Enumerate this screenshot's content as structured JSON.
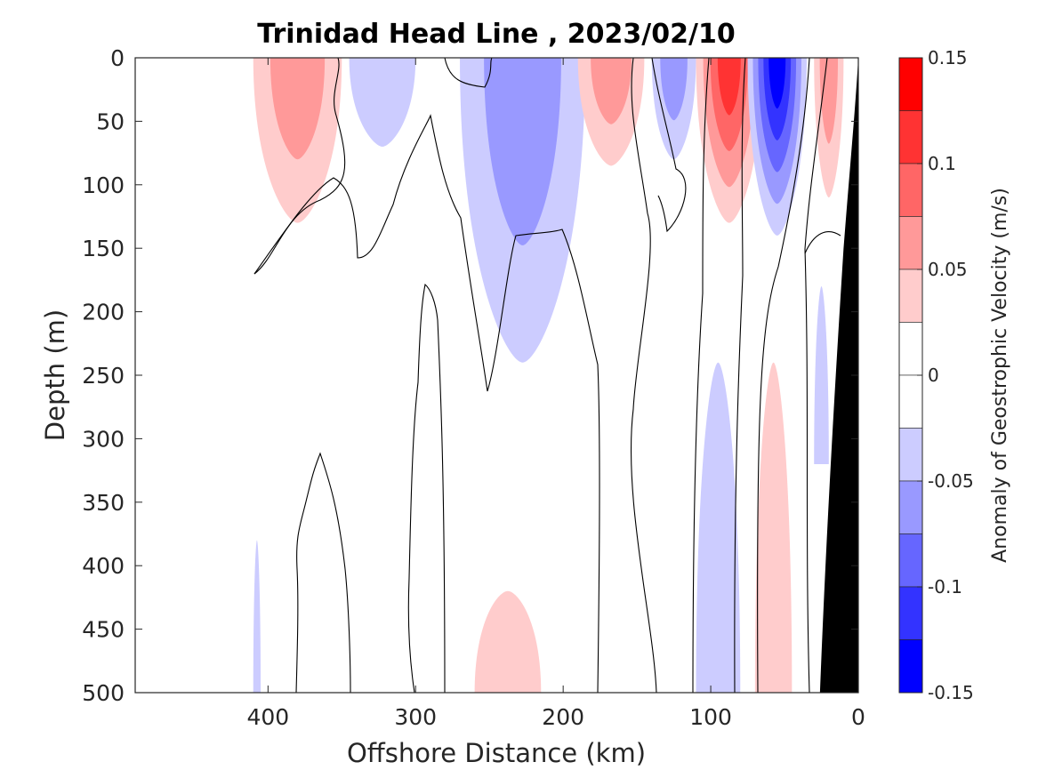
{
  "chart_data": {
    "type": "contour",
    "title": "Trinidad Head Line , 2023/02/10",
    "xlabel": "Offshore Distance (km)",
    "ylabel": "Depth (m)",
    "xlim": [
      490,
      0
    ],
    "ylim": [
      500,
      0
    ],
    "x_reversed": true,
    "y_reversed": true,
    "x_ticks": [
      400,
      300,
      200,
      100,
      0
    ],
    "y_ticks": [
      0,
      50,
      100,
      150,
      200,
      250,
      300,
      350,
      400,
      450,
      500
    ],
    "colorbar": {
      "label": "Anomaly of Geostrophic Velocity (m/s)",
      "min": -0.15,
      "max": 0.15,
      "ticks": [
        0.15,
        0.1,
        0.05,
        0,
        -0.05,
        -0.1,
        -0.15
      ],
      "tick_labels": [
        "0.15",
        "0.1",
        "0.05",
        "0",
        "-0.05",
        "-0.1",
        "-0.15"
      ],
      "levels": [
        {
          "range": [
            0.125,
            0.15
          ],
          "color": "#ff0000"
        },
        {
          "range": [
            0.1,
            0.125
          ],
          "color": "#ff3333"
        },
        {
          "range": [
            0.075,
            0.1
          ],
          "color": "#ff6666"
        },
        {
          "range": [
            0.05,
            0.075
          ],
          "color": "#ff9999"
        },
        {
          "range": [
            0.025,
            0.05
          ],
          "color": "#ffcccc"
        },
        {
          "range": [
            0.0,
            0.025
          ],
          "color": "#ffffff"
        },
        {
          "range": [
            -0.025,
            0.0
          ],
          "color": "#ffffff"
        },
        {
          "range": [
            -0.05,
            -0.025
          ],
          "color": "#ccccff"
        },
        {
          "range": [
            -0.075,
            -0.05
          ],
          "color": "#9999ff"
        },
        {
          "range": [
            -0.1,
            -0.075
          ],
          "color": "#6666ff"
        },
        {
          "range": [
            -0.125,
            -0.1
          ],
          "color": "#3333ff"
        },
        {
          "range": [
            -0.15,
            -0.125
          ],
          "color": "#0000ff"
        }
      ]
    },
    "positive_color": "#ff0000",
    "negative_color": "#0000ff",
    "bathymetry_color": "#000000",
    "features": [
      {
        "name": "surface-jet-positive-1",
        "level": 0.075,
        "x": [
          410,
          350
        ],
        "depth": [
          0,
          130
        ]
      },
      {
        "name": "surface-jet-negative-1",
        "level": -0.025,
        "x": [
          345,
          300
        ],
        "depth": [
          0,
          70
        ]
      },
      {
        "name": "surface-jet-negative-2",
        "level": -0.075,
        "x": [
          270,
          185
        ],
        "depth": [
          0,
          240
        ]
      },
      {
        "name": "surface-jet-positive-2",
        "level": 0.075,
        "x": [
          190,
          145
        ],
        "depth": [
          0,
          85
        ]
      },
      {
        "name": "surface-jet-negative-3",
        "level": -0.075,
        "x": [
          140,
          110
        ],
        "depth": [
          0,
          80
        ]
      },
      {
        "name": "surface-jet-positive-3",
        "level": 0.125,
        "x": [
          110,
          65
        ],
        "depth": [
          0,
          130
        ]
      },
      {
        "name": "surface-jet-negative-4",
        "level": -0.15,
        "x": [
          75,
          35
        ],
        "depth": [
          0,
          140
        ]
      },
      {
        "name": "surface-jet-positive-4",
        "level": 0.075,
        "x": [
          30,
          10
        ],
        "depth": [
          0,
          110
        ]
      },
      {
        "name": "deep-negative",
        "level": -0.025,
        "x": [
          110,
          80
        ],
        "depth": [
          240,
          500
        ]
      },
      {
        "name": "deep-positive",
        "level": 0.025,
        "x": [
          70,
          45
        ],
        "depth": [
          240,
          500
        ]
      },
      {
        "name": "deep-positive-2",
        "level": 0.025,
        "x": [
          260,
          215
        ],
        "depth": [
          420,
          500
        ]
      },
      {
        "name": "deep-negative-2",
        "level": -0.025,
        "x": [
          410,
          405
        ],
        "depth": [
          380,
          500
        ]
      },
      {
        "name": "shelf-negative",
        "level": -0.025,
        "x": [
          30,
          20
        ],
        "depth": [
          180,
          320
        ]
      }
    ]
  }
}
